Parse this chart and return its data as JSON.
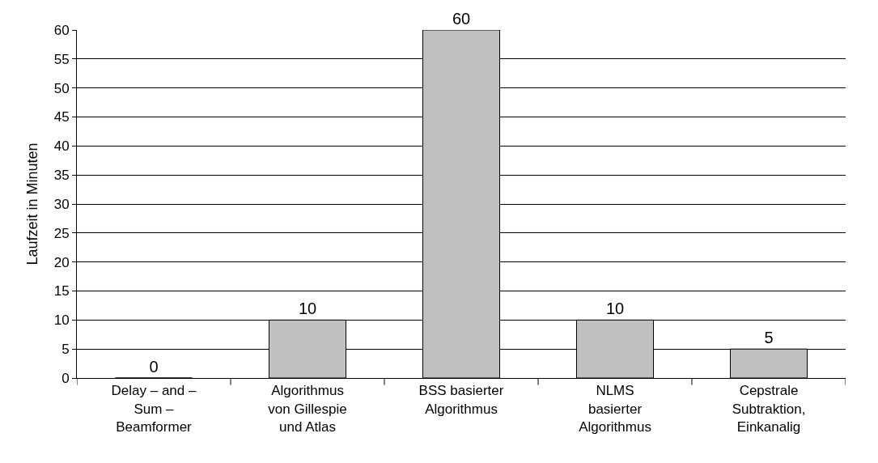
{
  "chart_data": {
    "type": "bar",
    "ylabel": "Laufzeit in Minuten",
    "categories": [
      "Delay – and – Sum – Beamformer",
      "Algorithmus von Gillespie und Atlas",
      "BSS basierter Algorithmus",
      "NLMS basierter Algorithmus",
      "Cepstrale Subtraktion, Einkanalig"
    ],
    "values": [
      0,
      10,
      60,
      10,
      5
    ],
    "color": "#c0c0c0",
    "ylim": [
      0,
      60
    ],
    "yticks": [
      0,
      5,
      10,
      15,
      20,
      25,
      30,
      35,
      40,
      45,
      50,
      55,
      60
    ],
    "grid": "y",
    "data_labels": true
  }
}
